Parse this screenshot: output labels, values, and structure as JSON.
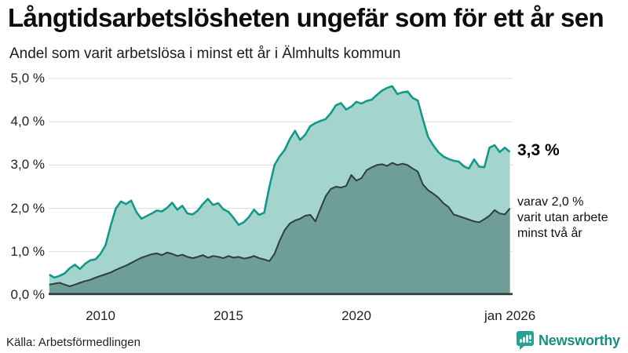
{
  "header": {
    "title": "Långtidsarbetslösheten ungefär som för ett år sen",
    "subtitle": "Andel som varit arbetslösa i minst ett år i Älmhults kommun"
  },
  "chart_data": {
    "type": "area",
    "title": "Långtidsarbetslösheten ungefär som för ett år sen",
    "subtitle": "Andel som varit arbetslösa i minst ett år i Älmhults kommun",
    "xlabel": "",
    "ylabel": "",
    "grid": true,
    "ylim": [
      0,
      5
    ],
    "xlim": [
      2008.0,
      2026.1
    ],
    "x_start": 2008.0,
    "x_step": 0.2,
    "x_unit": "year (monthly series)",
    "y_unit": "%",
    "y_ticks": [
      {
        "label": "0,0 %",
        "value": 0
      },
      {
        "label": "1,0 %",
        "value": 1
      },
      {
        "label": "2,0 %",
        "value": 2
      },
      {
        "label": "3,0 %",
        "value": 3
      },
      {
        "label": "4,0 %",
        "value": 4
      },
      {
        "label": "5,0 %",
        "value": 5
      }
    ],
    "x_ticks": [
      {
        "label": "2010",
        "year": 2010
      },
      {
        "label": "2015",
        "year": 2015
      },
      {
        "label": "2020",
        "year": 2020
      },
      {
        "label": "jan 2026",
        "year": 2026
      }
    ],
    "series": [
      {
        "name": "Andel som varit arbetslösa i minst ett år",
        "line_color": "#17978a",
        "fill_color": "#a3d5ce",
        "last_value_label": "3,3 %",
        "values": [
          0.47,
          0.4,
          0.44,
          0.5,
          0.62,
          0.7,
          0.6,
          0.72,
          0.8,
          0.82,
          0.95,
          1.15,
          1.6,
          2.0,
          2.16,
          2.1,
          2.18,
          1.92,
          1.76,
          1.82,
          1.88,
          1.95,
          1.93,
          2.01,
          2.13,
          1.97,
          2.06,
          1.88,
          1.86,
          1.95,
          2.1,
          2.22,
          2.08,
          2.12,
          1.98,
          1.92,
          1.78,
          1.62,
          1.68,
          1.8,
          1.97,
          1.85,
          1.9,
          2.5,
          3.0,
          3.2,
          3.35,
          3.6,
          3.79,
          3.58,
          3.7,
          3.9,
          3.97,
          4.02,
          4.06,
          4.2,
          4.38,
          4.43,
          4.28,
          4.35,
          4.46,
          4.42,
          4.48,
          4.51,
          4.62,
          4.72,
          4.78,
          4.82,
          4.64,
          4.68,
          4.7,
          4.55,
          4.49,
          4.05,
          3.65,
          3.46,
          3.3,
          3.2,
          3.14,
          3.1,
          3.08,
          2.97,
          2.92,
          3.13,
          2.96,
          2.95,
          3.4,
          3.46,
          3.3,
          3.4,
          3.3
        ]
      },
      {
        "name": "varav varit utan arbete minst två år",
        "line_color": "#2e3f3d",
        "fill_color": "#6f9d97",
        "last_value_label": "2,0 %",
        "values": [
          0.24,
          0.26,
          0.28,
          0.24,
          0.2,
          0.24,
          0.28,
          0.32,
          0.35,
          0.4,
          0.44,
          0.48,
          0.52,
          0.58,
          0.63,
          0.68,
          0.74,
          0.8,
          0.86,
          0.9,
          0.94,
          0.96,
          0.92,
          0.98,
          0.95,
          0.9,
          0.93,
          0.88,
          0.85,
          0.88,
          0.92,
          0.86,
          0.9,
          0.88,
          0.85,
          0.9,
          0.86,
          0.88,
          0.84,
          0.86,
          0.9,
          0.85,
          0.82,
          0.78,
          0.95,
          1.25,
          1.5,
          1.65,
          1.72,
          1.76,
          1.83,
          1.85,
          1.7,
          2.0,
          2.28,
          2.45,
          2.5,
          2.48,
          2.52,
          2.77,
          2.64,
          2.7,
          2.88,
          2.95,
          3.0,
          3.02,
          2.98,
          3.05,
          3.0,
          3.03,
          3.0,
          2.92,
          2.85,
          2.55,
          2.42,
          2.34,
          2.25,
          2.12,
          2.03,
          1.86,
          1.82,
          1.78,
          1.74,
          1.7,
          1.68,
          1.75,
          1.83,
          1.96,
          1.88,
          1.86,
          2.0
        ]
      }
    ],
    "annotations": [
      {
        "text": "3,3 %"
      },
      {
        "lines": [
          "varav 2,0 %",
          "varit utan arbete",
          "minst två år"
        ]
      }
    ],
    "legend_position": "right-annotations",
    "grid_color": "#dcdcdc",
    "baseline_color": "#2e3f3d"
  },
  "footer": {
    "source": "Källa: Arbetsförmedlingen",
    "brand": "Newsworthy",
    "brand_color": "#1b8c80",
    "brand_icon_color": "#2aa094"
  }
}
